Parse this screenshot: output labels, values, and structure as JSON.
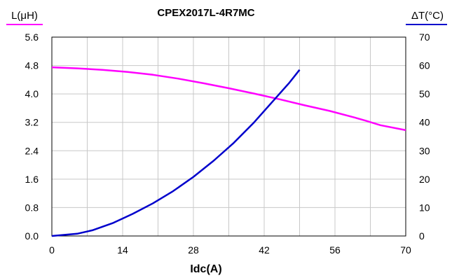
{
  "chart_data": {
    "type": "line",
    "title": "CPEX2017L-4R7MC",
    "xlabel": "Idc(A)",
    "ylabel_left": "L(μH)",
    "ylabel_right": "ΔT(°C)",
    "xlim": [
      0,
      70
    ],
    "ylim_left": [
      0,
      5.6
    ],
    "ylim_right": [
      0,
      70
    ],
    "x_ticks": [
      "0",
      "14",
      "28",
      "42",
      "56",
      "70"
    ],
    "y_left_ticks": [
      "0.0",
      "0.8",
      "1.6",
      "2.4",
      "3.2",
      "4.0",
      "4.8",
      "5.6"
    ],
    "y_right_ticks": [
      "0",
      "10",
      "20",
      "30",
      "40",
      "50",
      "60",
      "70"
    ],
    "grid": true,
    "colors": {
      "inductance": "#ff00ff",
      "temperature": "#0000cc"
    },
    "series": [
      {
        "axis": "left",
        "color": "#ff00ff",
        "x": [
          0,
          5,
          10,
          15,
          20,
          25,
          30,
          35,
          40,
          45,
          50,
          55,
          60,
          62,
          65,
          70
        ],
        "y": [
          4.75,
          4.72,
          4.68,
          4.62,
          4.54,
          4.43,
          4.3,
          4.16,
          4.01,
          3.85,
          3.68,
          3.52,
          3.33,
          3.25,
          3.12,
          2.98
        ]
      },
      {
        "axis": "right",
        "color": "#0000cc",
        "x": [
          0,
          5,
          8,
          12,
          16,
          20,
          24,
          28,
          32,
          36,
          40,
          44,
          47,
          49
        ],
        "y": [
          0,
          0.8,
          2.0,
          4.5,
          7.8,
          11.5,
          15.8,
          20.8,
          26.5,
          32.8,
          40.0,
          48.0,
          54.0,
          58.5
        ]
      }
    ]
  }
}
